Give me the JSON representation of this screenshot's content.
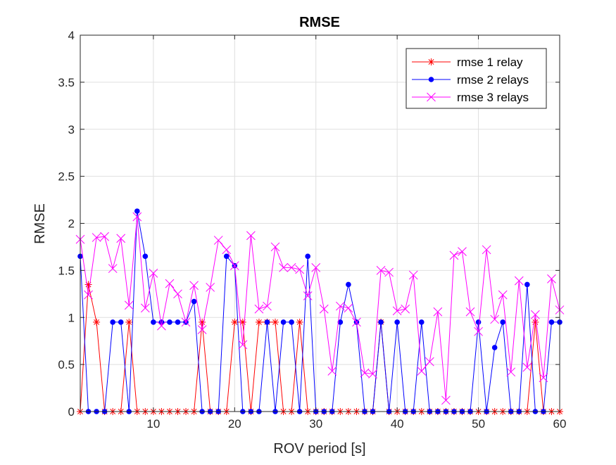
{
  "chart_data": {
    "type": "line",
    "title": "RMSE",
    "xlabel": "ROV period [s]",
    "ylabel": "RMSE",
    "xlim": [
      1,
      60
    ],
    "ylim": [
      0,
      4
    ],
    "xticks": [
      10,
      20,
      30,
      40,
      50,
      60
    ],
    "yticks": [
      0,
      0.5,
      1,
      1.5,
      2,
      2.5,
      3,
      3.5,
      4
    ],
    "ytick_labels": [
      "0",
      "0.5",
      "1",
      "1.5",
      "2",
      "2.5",
      "3",
      "3.5",
      "4"
    ],
    "grid": true,
    "legend_position": "top-right",
    "x": [
      1,
      2,
      3,
      4,
      5,
      6,
      7,
      8,
      9,
      10,
      11,
      12,
      13,
      14,
      15,
      16,
      17,
      18,
      19,
      20,
      21,
      22,
      23,
      24,
      25,
      26,
      27,
      28,
      29,
      30,
      31,
      32,
      33,
      34,
      35,
      36,
      37,
      38,
      39,
      40,
      41,
      42,
      43,
      44,
      45,
      46,
      47,
      48,
      49,
      50,
      51,
      52,
      53,
      54,
      55,
      56,
      57,
      58,
      59,
      60
    ],
    "series": [
      {
        "name": "rmse 1 relay",
        "color": "#ff0000",
        "marker": "asterisk",
        "values": [
          0,
          1.35,
          0.95,
          0,
          0,
          0,
          0.95,
          0,
          0,
          0,
          0,
          0,
          0,
          0,
          0,
          0.95,
          0,
          0,
          0,
          0.95,
          0.95,
          0,
          0.95,
          0.95,
          0.95,
          0,
          0,
          0.95,
          0,
          0,
          0,
          0,
          0,
          0,
          0,
          0,
          0,
          0.95,
          0,
          0,
          0,
          0,
          0,
          0,
          0,
          0,
          0,
          0,
          0,
          0,
          0,
          0,
          0,
          0,
          0,
          0,
          0.95,
          0,
          0,
          0
        ]
      },
      {
        "name": "rmse 2 relays",
        "color": "#0000ff",
        "marker": "dot",
        "values": [
          1.65,
          0,
          0,
          0,
          0.95,
          0.95,
          0,
          2.13,
          1.65,
          0.95,
          0.95,
          0.95,
          0.95,
          0.95,
          1.17,
          0,
          0,
          0,
          1.65,
          1.55,
          0,
          0,
          0,
          0.95,
          0,
          0.95,
          0.95,
          0,
          1.65,
          0,
          0,
          0,
          0.95,
          1.35,
          0.95,
          0,
          0,
          0.95,
          0,
          0.95,
          0,
          0,
          0.95,
          0,
          0,
          0,
          0,
          0,
          0,
          0.95,
          0,
          0.68,
          0.95,
          0,
          0,
          1.35,
          0,
          0,
          0.95,
          0.95
        ]
      },
      {
        "name": "rmse 3 relays",
        "color": "#ff00ff",
        "marker": "cross",
        "values": [
          1.83,
          1.24,
          1.85,
          1.86,
          1.52,
          1.84,
          1.13,
          2.07,
          1.1,
          1.47,
          0.91,
          1.36,
          1.25,
          0.95,
          1.34,
          0.87,
          1.32,
          1.82,
          1.72,
          1.55,
          0.71,
          1.87,
          1.09,
          1.12,
          1.75,
          1.53,
          1.53,
          1.51,
          1.23,
          1.53,
          1.09,
          0.43,
          1.12,
          1.1,
          0.95,
          0.41,
          0.4,
          1.5,
          1.48,
          1.07,
          1.09,
          1.45,
          0.43,
          0.53,
          1.06,
          0.12,
          1.66,
          1.7,
          1.06,
          0.85,
          1.72,
          0.98,
          1.24,
          0.42,
          1.39,
          0.47,
          1.03,
          0.36,
          1.41,
          1.08
        ]
      }
    ]
  }
}
